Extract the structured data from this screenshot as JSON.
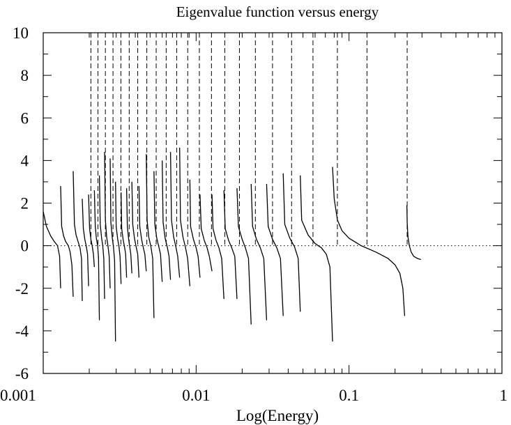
{
  "chart_data": {
    "type": "line",
    "title": "Eigenvalue function versus energy",
    "xlabel": "Log(Energy)",
    "ylabel": "",
    "x_scale": "log",
    "xlim": [
      0.001,
      1
    ],
    "ylim": [
      -6,
      10
    ],
    "x_ticks": [
      {
        "value": 0.001,
        "label": "0.001"
      },
      {
        "value": 0.01,
        "label": "0.01"
      },
      {
        "value": 0.1,
        "label": "0.1"
      },
      {
        "value": 1,
        "label": "1"
      }
    ],
    "y_ticks": [
      {
        "value": -6,
        "label": "-6"
      },
      {
        "value": -4,
        "label": "-4"
      },
      {
        "value": -2,
        "label": "-2"
      },
      {
        "value": 0,
        "label": "0"
      },
      {
        "value": 2,
        "label": "2"
      },
      {
        "value": 4,
        "label": "4"
      },
      {
        "value": 6,
        "label": "6"
      },
      {
        "value": 8,
        "label": "8"
      },
      {
        "value": 10,
        "label": "10"
      }
    ],
    "reference_line": {
      "y": 0,
      "style": "dotted"
    },
    "eigenvalue_lines": [
      0.00205,
      0.00228,
      0.00255,
      0.00286,
      0.00322,
      0.00365,
      0.00415,
      0.00476,
      0.00548,
      0.00637,
      0.00746,
      0.00881,
      0.0105,
      0.0126,
      0.0154,
      0.0192,
      0.0244,
      0.0316,
      0.0421,
      0.0581,
      0.0839,
      0.131,
      0.24
    ],
    "series": [
      {
        "style": "solid",
        "segments": [
          {
            "x": [
              0.001,
              0.00105,
              0.00112,
              0.00118,
              0.00124,
              0.00128,
              0.0013
            ],
            "y": [
              1.6,
              0.9,
              0.45,
              0.2,
              0.0,
              -0.5,
              -2.0
            ]
          },
          {
            "x": [
              0.0013,
              0.00132,
              0.00136,
              0.0014,
              0.00146,
              0.0015,
              0.00154,
              0.00157
            ],
            "y": [
              2.8,
              0.9,
              0.45,
              0.2,
              0.0,
              -0.3,
              -0.9,
              -2.4
            ]
          },
          {
            "x": [
              0.00157,
              0.0016,
              0.00164,
              0.00168,
              0.00174,
              0.00178,
              0.0018
            ],
            "y": [
              3.5,
              1.0,
              0.5,
              0.25,
              -0.1,
              -0.6,
              -2.6
            ]
          },
          {
            "x": [
              0.0018,
              0.00183,
              0.00187,
              0.00191,
              0.00195,
              0.00198
            ],
            "y": [
              2.2,
              0.8,
              0.3,
              0.0,
              -0.4,
              -1.9
            ]
          },
          {
            "x": [
              0.00198,
              0.00201,
              0.00205,
              0.00209,
              0.00213,
              0.00216
            ],
            "y": [
              2.4,
              0.8,
              0.3,
              0.0,
              -0.4,
              -1.0
            ]
          },
          {
            "x": [
              0.00216,
              0.00219,
              0.00223,
              0.00227,
              0.0023,
              0.00233
            ],
            "y": [
              2.6,
              0.9,
              0.3,
              0.0,
              -0.6,
              -3.5
            ]
          },
          {
            "x": [
              0.00233,
              0.00236,
              0.00241,
              0.00245,
              0.00249,
              0.00252
            ],
            "y": [
              3.3,
              1.0,
              0.35,
              0.0,
              -0.6,
              -2.5
            ]
          },
          {
            "x": [
              0.00252,
              0.00255,
              0.0026,
              0.00265,
              0.0027,
              0.00274
            ],
            "y": [
              4.4,
              1.2,
              0.4,
              0.0,
              -0.5,
              -2.0
            ]
          },
          {
            "x": [
              0.00274,
              0.00277,
              0.00283,
              0.00288,
              0.00293,
              0.00297
            ],
            "y": [
              4.1,
              1.1,
              0.35,
              -0.05,
              -0.7,
              -4.5
            ]
          },
          {
            "x": [
              0.00297,
              0.003,
              0.00307,
              0.00313,
              0.00318,
              0.00323
            ],
            "y": [
              3.0,
              0.9,
              0.3,
              -0.05,
              -0.5,
              -1.8
            ]
          },
          {
            "x": [
              0.00323,
              0.00326,
              0.00333,
              0.0034,
              0.00346,
              0.00351
            ],
            "y": [
              2.5,
              0.8,
              0.3,
              -0.05,
              -0.4,
              -1.5
            ]
          },
          {
            "x": [
              0.00351,
              0.00355,
              0.00362,
              0.00368,
              0.00374,
              0.0038
            ],
            "y": [
              2.7,
              0.9,
              0.3,
              -0.05,
              -0.4,
              -1.3
            ]
          },
          {
            "x": [
              0.0038,
              0.00385,
              0.00395,
              0.00405,
              0.00415,
              0.00423
            ],
            "y": [
              3.0,
              1.0,
              0.35,
              -0.05,
              -0.4,
              -1.5
            ]
          },
          {
            "x": [
              0.00423,
              0.00428,
              0.0044,
              0.0045,
              0.00462,
              0.00472
            ],
            "y": [
              2.8,
              0.9,
              0.3,
              -0.05,
              -0.4,
              -1.2
            ]
          },
          {
            "x": [
              0.00472,
              0.00478,
              0.0049,
              0.00505,
              0.0052,
              0.0053
            ],
            "y": [
              4.3,
              1.2,
              0.4,
              0.0,
              -0.6,
              -3.4
            ]
          },
          {
            "x": [
              0.0053,
              0.00537,
              0.00553,
              0.0057,
              0.00585,
              0.006
            ],
            "y": [
              3.5,
              1.0,
              0.35,
              -0.05,
              -0.4,
              -1.7
            ]
          },
          {
            "x": [
              0.006,
              0.00608,
              0.00627,
              0.00647,
              0.00665,
              0.0068
            ],
            "y": [
              4.0,
              1.1,
              0.35,
              -0.05,
              -0.5,
              -1.6
            ]
          },
          {
            "x": [
              0.0068,
              0.0069,
              0.00713,
              0.00737,
              0.00758,
              0.0078
            ],
            "y": [
              4.4,
              1.2,
              0.4,
              -0.05,
              -0.5,
              -1.5
            ]
          },
          {
            "x": [
              0.0078,
              0.0079,
              0.0082,
              0.0085,
              0.0088,
              0.0091
            ],
            "y": [
              4.6,
              1.2,
              0.4,
              -0.05,
              -0.6,
              -1.9
            ]
          },
          {
            "x": [
              0.0091,
              0.0092,
              0.0096,
              0.01,
              0.0103,
              0.0106
            ],
            "y": [
              3.1,
              0.9,
              0.3,
              -0.1,
              -0.5,
              -1.5
            ]
          },
          {
            "x": [
              0.0106,
              0.0108,
              0.0113,
              0.0118,
              0.0122,
              0.0127
            ],
            "y": [
              2.4,
              0.8,
              0.25,
              -0.1,
              -0.5,
              -1.2
            ]
          },
          {
            "x": [
              0.0127,
              0.0129,
              0.0135,
              0.0141,
              0.0147,
              0.0152
            ],
            "y": [
              2.4,
              0.8,
              0.25,
              -0.1,
              -0.6,
              -2.5
            ]
          },
          {
            "x": [
              0.0152,
              0.0155,
              0.0163,
              0.0171,
              0.0179,
              0.0185
            ],
            "y": [
              2.6,
              0.8,
              0.25,
              -0.1,
              -0.5,
              -2.5
            ]
          },
          {
            "x": [
              0.0185,
              0.0189,
              0.02,
              0.021,
              0.022,
              0.0229
            ],
            "y": [
              2.7,
              0.9,
              0.3,
              -0.1,
              -0.6,
              -3.7
            ]
          },
          {
            "x": [
              0.0229,
              0.0234,
              0.0248,
              0.0263,
              0.0277,
              0.0289
            ],
            "y": [
              2.9,
              0.9,
              0.3,
              -0.1,
              -0.6,
              -3.5
            ]
          },
          {
            "x": [
              0.0289,
              0.0296,
              0.0316,
              0.0337,
              0.0356,
              0.0371
            ],
            "y": [
              2.9,
              0.9,
              0.3,
              -0.1,
              -0.6,
              -3.3
            ]
          },
          {
            "x": [
              0.0371,
              0.038,
              0.041,
              0.044,
              0.0465,
              0.048
            ],
            "y": [
              3.4,
              1.0,
              0.35,
              -0.05,
              -0.6,
              -3.1
            ]
          },
          {
            "x": [
              0.048,
              0.049,
              0.054,
              0.06,
              0.066,
              0.071,
              0.075,
              0.078
            ],
            "y": [
              3.3,
              1.2,
              0.5,
              0.1,
              -0.1,
              -0.4,
              -1.0,
              -4.5
            ]
          },
          {
            "x": [
              0.078,
              0.08,
              0.084,
              0.09,
              0.1,
              0.12,
              0.15,
              0.18,
              0.2,
              0.215,
              0.225,
              0.231
            ],
            "y": [
              3.7,
              2.2,
              1.2,
              0.7,
              0.35,
              0.0,
              -0.3,
              -0.6,
              -0.9,
              -1.3,
              -2.0,
              -3.3
            ]
          },
          {
            "x": [
              0.239,
              0.24,
              0.243,
              0.248,
              0.255,
              0.265,
              0.28,
              0.295
            ],
            "y": [
              1.9,
              1.1,
              0.4,
              0.0,
              -0.3,
              -0.5,
              -0.6,
              -0.65
            ]
          }
        ]
      }
    ]
  }
}
